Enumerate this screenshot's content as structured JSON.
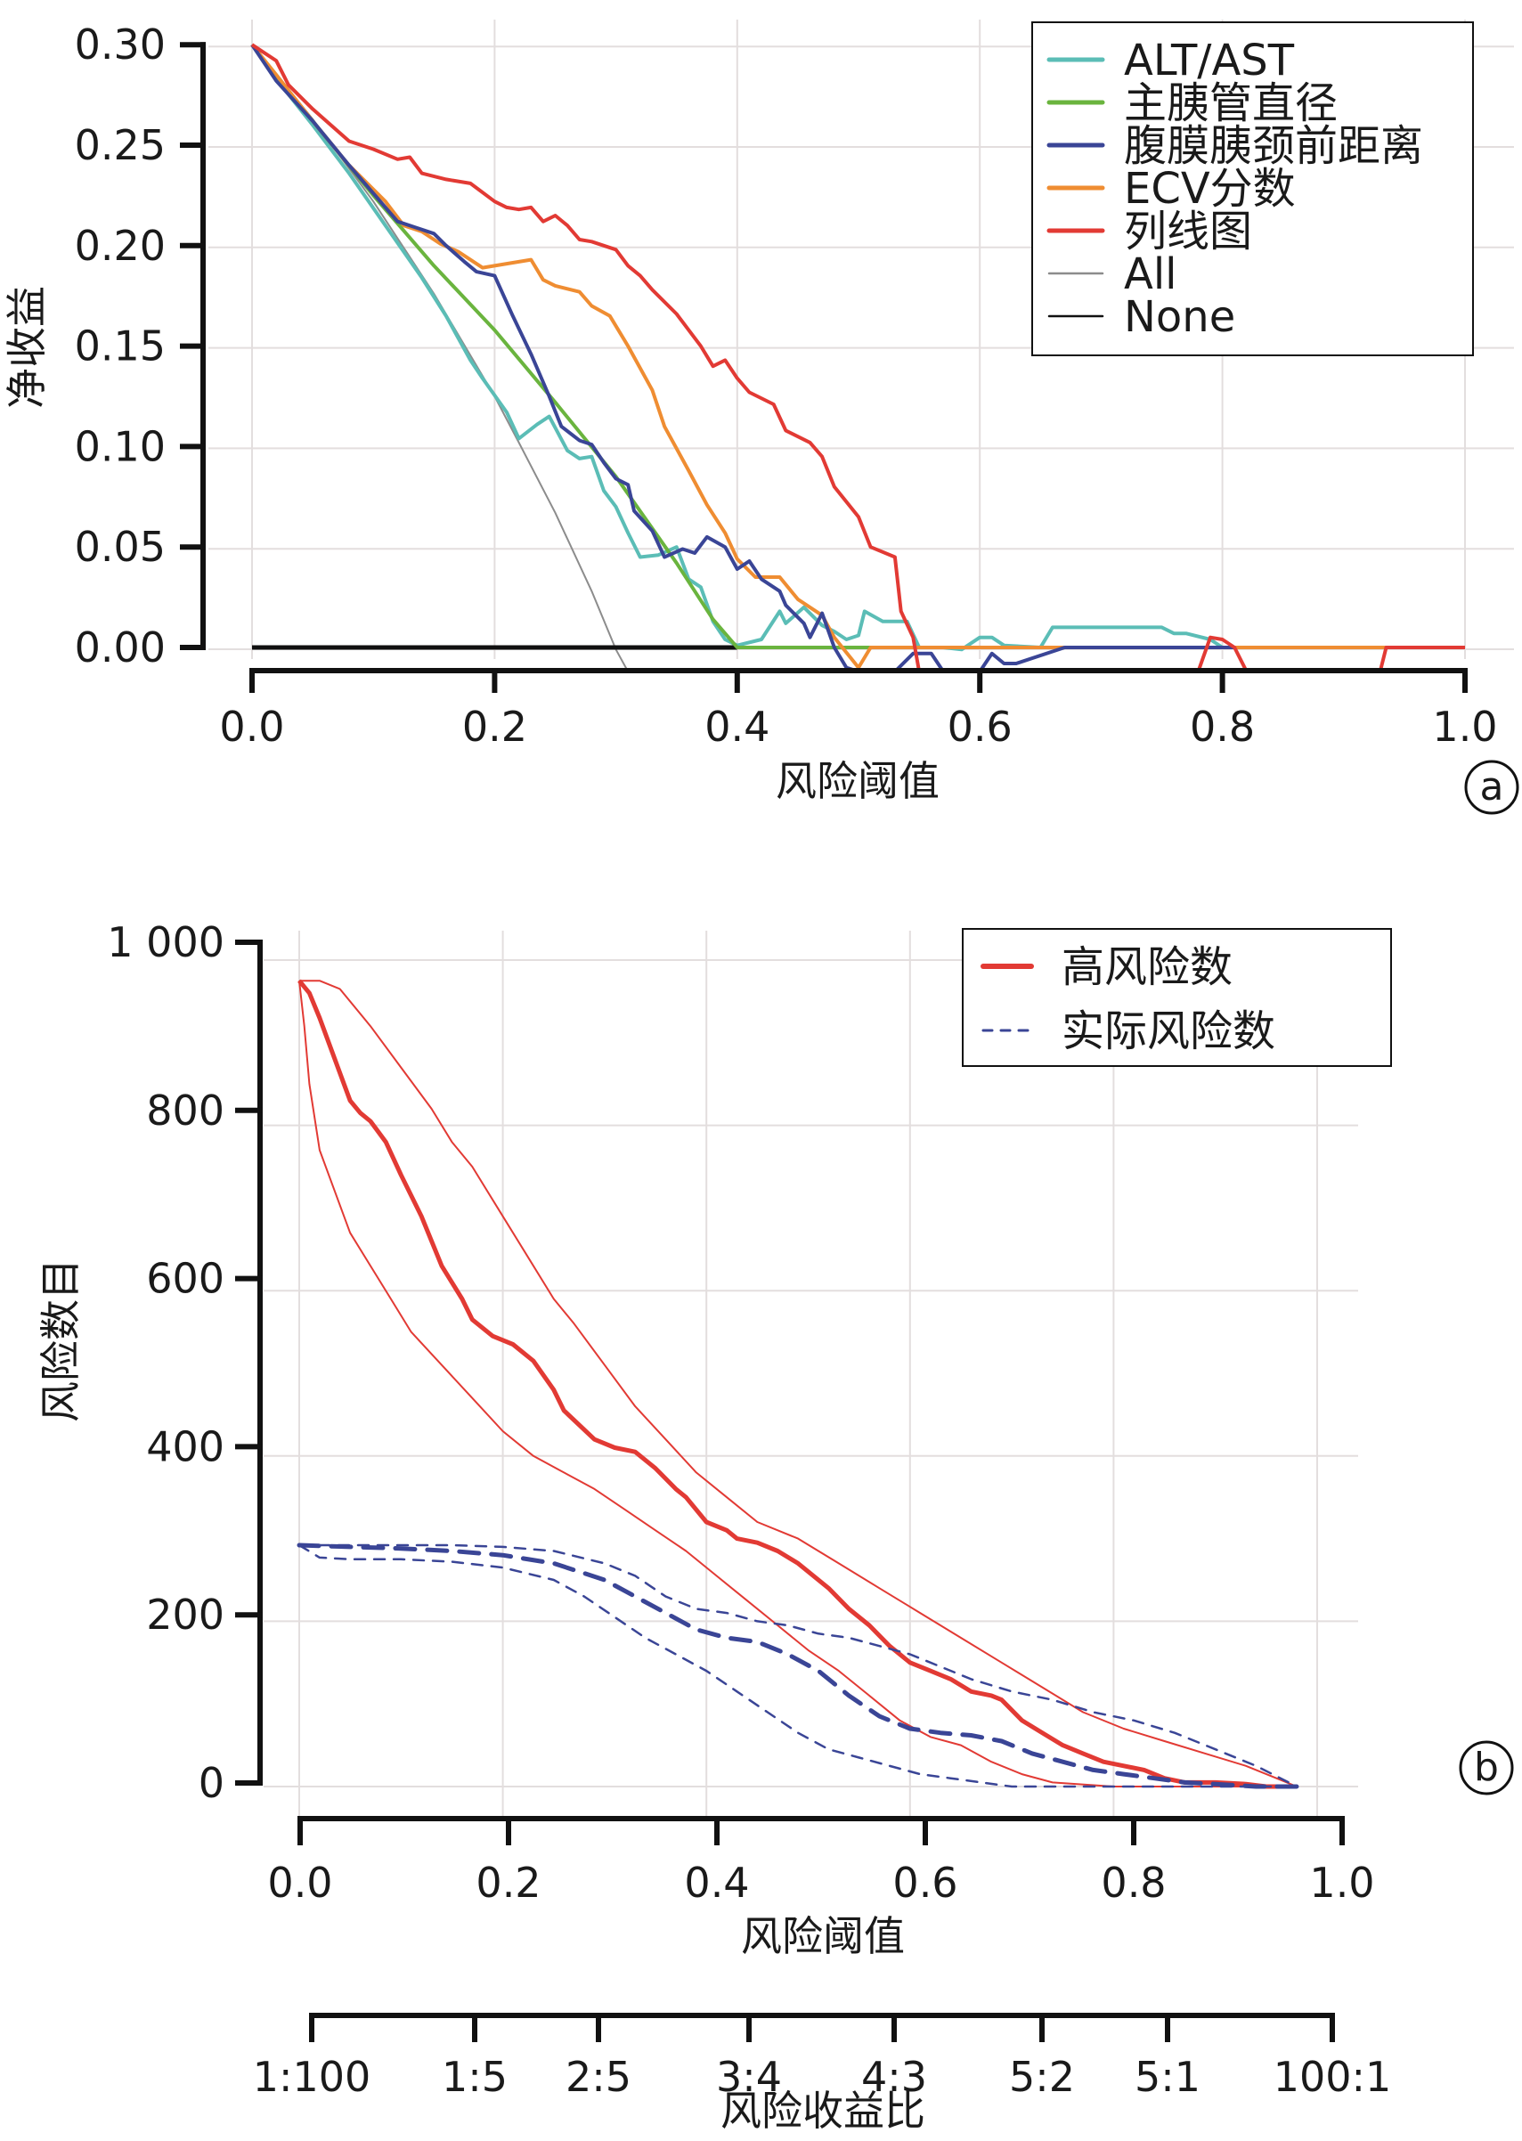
{
  "chart_data": [
    {
      "type": "line",
      "panel_label": "a",
      "title": "",
      "xlabel": "风险阈值",
      "ylabel": "净收益",
      "xlim": [
        0,
        1.0
      ],
      "ylim": [
        -0.012,
        0.3
      ],
      "x_ticks": [
        "0.0",
        "0.2",
        "0.4",
        "0.6",
        "0.8",
        "1.0"
      ],
      "x_tick_values": [
        0,
        0.2,
        0.4,
        0.6,
        0.8,
        1.0
      ],
      "y_ticks": [
        "0.30",
        "0.25",
        "0.20",
        "0.15",
        "0.10",
        "0.05",
        "0.00"
      ],
      "y_tick_values": [
        0.3,
        0.25,
        0.2,
        0.15,
        0.1,
        0.05,
        0.0
      ],
      "grid": true,
      "legend_position": "top-right",
      "series": [
        {
          "name": "ALT/AST",
          "color": "#5bbdb6",
          "width": 4,
          "x": [
            0,
            0.02,
            0.05,
            0.08,
            0.11,
            0.14,
            0.16,
            0.18,
            0.19,
            0.21,
            0.22,
            0.235,
            0.245,
            0.26,
            0.27,
            0.28,
            0.29,
            0.3,
            0.31,
            0.32,
            0.335,
            0.35,
            0.36,
            0.37,
            0.38,
            0.39,
            0.4,
            0.42,
            0.435,
            0.44,
            0.455,
            0.47,
            0.48,
            0.49,
            0.5,
            0.505,
            0.52,
            0.53,
            0.54,
            0.55,
            0.57,
            0.585,
            0.6,
            0.61,
            0.62,
            0.65,
            0.66,
            0.67,
            0.75,
            0.76,
            0.77,
            0.79,
            0.8
          ],
          "y": [
            0.3,
            0.283,
            0.26,
            0.236,
            0.21,
            0.184,
            0.165,
            0.143,
            0.134,
            0.117,
            0.104,
            0.111,
            0.115,
            0.098,
            0.094,
            0.095,
            0.078,
            0.07,
            0.057,
            0.045,
            0.046,
            0.05,
            0.034,
            0.03,
            0.013,
            0.004,
            0.001,
            0.004,
            0.018,
            0.012,
            0.02,
            0.011,
            0.008,
            0.004,
            0.006,
            0.018,
            0.013,
            0.013,
            0.013,
            0.0,
            0.0,
            -0.001,
            0.005,
            0.005,
            0.001,
            0.0,
            0.01,
            0.01,
            0.01,
            0.007,
            0.007,
            0.004,
            0.0
          ]
        },
        {
          "name": "主胰管直径",
          "color": "#6ab43e",
          "width": 4,
          "x": [
            0,
            0.05,
            0.1,
            0.15,
            0.2,
            0.25,
            0.3,
            0.35,
            0.38,
            0.4,
            1.0
          ],
          "y": [
            0.3,
            0.262,
            0.225,
            0.19,
            0.158,
            0.122,
            0.085,
            0.042,
            0.014,
            0.0,
            0.0
          ]
        },
        {
          "name": "腹膜胰颈前距离",
          "color": "#3a4596",
          "width": 4,
          "x": [
            0,
            0.02,
            0.05,
            0.08,
            0.1,
            0.12,
            0.135,
            0.15,
            0.16,
            0.175,
            0.185,
            0.2,
            0.215,
            0.23,
            0.245,
            0.255,
            0.27,
            0.28,
            0.29,
            0.3,
            0.31,
            0.315,
            0.33,
            0.34,
            0.355,
            0.365,
            0.375,
            0.39,
            0.4,
            0.41,
            0.42,
            0.435,
            0.44,
            0.455,
            0.46,
            0.47,
            0.48,
            0.49,
            0.5,
            0.505,
            0.52,
            0.53,
            0.545,
            0.56,
            0.57,
            0.58,
            0.6,
            0.61,
            0.62,
            0.63,
            0.67,
            0.8,
            0.81
          ],
          "y": [
            0.3,
            0.282,
            0.262,
            0.24,
            0.226,
            0.212,
            0.209,
            0.206,
            0.2,
            0.192,
            0.187,
            0.185,
            0.165,
            0.146,
            0.125,
            0.11,
            0.103,
            0.101,
            0.092,
            0.084,
            0.081,
            0.068,
            0.058,
            0.045,
            0.049,
            0.047,
            0.055,
            0.05,
            0.039,
            0.043,
            0.034,
            0.028,
            0.021,
            0.012,
            0.005,
            0.017,
            0.0,
            -0.01,
            -0.012,
            -0.012,
            -0.012,
            -0.012,
            -0.003,
            -0.003,
            -0.012,
            -0.012,
            -0.012,
            -0.003,
            -0.008,
            -0.008,
            0.0,
            0.0,
            0.0
          ]
        },
        {
          "name": "ECV分数",
          "color": "#ef8d32",
          "width": 4,
          "x": [
            0,
            0.02,
            0.05,
            0.08,
            0.11,
            0.125,
            0.14,
            0.155,
            0.17,
            0.19,
            0.21,
            0.23,
            0.24,
            0.25,
            0.27,
            0.28,
            0.295,
            0.31,
            0.33,
            0.34,
            0.36,
            0.375,
            0.39,
            0.4,
            0.415,
            0.435,
            0.45,
            0.47,
            0.48,
            0.5,
            0.51,
            0.82,
            0.935
          ],
          "y": [
            0.3,
            0.285,
            0.262,
            0.24,
            0.222,
            0.21,
            0.207,
            0.201,
            0.197,
            0.189,
            0.191,
            0.193,
            0.183,
            0.18,
            0.177,
            0.17,
            0.165,
            0.15,
            0.128,
            0.11,
            0.088,
            0.071,
            0.057,
            0.044,
            0.035,
            0.035,
            0.024,
            0.016,
            0.005,
            -0.01,
            0.0,
            0.0,
            0.0
          ]
        },
        {
          "name": "列线图",
          "color": "#e23a34",
          "width": 4,
          "x": [
            0,
            0.02,
            0.03,
            0.05,
            0.08,
            0.1,
            0.12,
            0.13,
            0.14,
            0.16,
            0.18,
            0.2,
            0.21,
            0.22,
            0.23,
            0.24,
            0.25,
            0.26,
            0.27,
            0.28,
            0.3,
            0.31,
            0.32,
            0.33,
            0.35,
            0.36,
            0.37,
            0.38,
            0.39,
            0.4,
            0.41,
            0.43,
            0.44,
            0.46,
            0.47,
            0.48,
            0.5,
            0.51,
            0.53,
            0.535,
            0.545,
            0.55,
            0.78,
            0.79,
            0.8,
            0.81,
            0.82,
            0.93,
            0.935,
            1.0
          ],
          "y": [
            0.3,
            0.292,
            0.28,
            0.268,
            0.252,
            0.248,
            0.243,
            0.244,
            0.236,
            0.233,
            0.231,
            0.222,
            0.219,
            0.218,
            0.219,
            0.212,
            0.215,
            0.21,
            0.203,
            0.202,
            0.198,
            0.19,
            0.185,
            0.178,
            0.166,
            0.158,
            0.15,
            0.14,
            0.143,
            0.134,
            0.127,
            0.121,
            0.108,
            0.102,
            0.095,
            0.08,
            0.065,
            0.05,
            0.045,
            0.018,
            0.005,
            -0.012,
            -0.012,
            0.005,
            0.004,
            0.0,
            -0.012,
            -0.012,
            0.0,
            0.0
          ]
        },
        {
          "name": "All",
          "color": "#8c8c8c",
          "width": 2,
          "x": [
            0,
            0.05,
            0.1,
            0.15,
            0.2,
            0.22,
            0.25,
            0.28,
            0.3,
            0.31
          ],
          "y": [
            0.3,
            0.263,
            0.222,
            0.176,
            0.125,
            0.102,
            0.067,
            0.028,
            -0.001,
            -0.012
          ]
        },
        {
          "name": "None",
          "color": "#111111",
          "width": 5,
          "x": [
            0,
            0.4
          ],
          "y": [
            0,
            0
          ]
        }
      ]
    },
    {
      "type": "line",
      "panel_label": "b",
      "title": "",
      "xlabel": "风险阈值",
      "ylabel": "风险数目",
      "secondary_xlabel": "风险收益比",
      "xlim": [
        0,
        1.0
      ],
      "ylim": [
        0,
        1000
      ],
      "x_ticks": [
        "0.0",
        "0.2",
        "0.4",
        "0.6",
        "0.8",
        "1.0"
      ],
      "x_tick_values": [
        0,
        0.2,
        0.4,
        0.6,
        0.8,
        1.0
      ],
      "y_ticks": [
        "1 000",
        "800",
        "600",
        "400",
        "200",
        "0"
      ],
      "y_tick_values": [
        1000,
        800,
        600,
        400,
        200,
        0
      ],
      "secondary_x_ticks": [
        "1:100",
        "1:5",
        "2:5",
        "3:4",
        "4:3",
        "5:2",
        "5:1",
        "100:1"
      ],
      "secondary_x_tick_values": [
        0.01,
        0.167,
        0.286,
        0.429,
        0.571,
        0.714,
        0.833,
        0.99
      ],
      "grid": true,
      "legend_position": "top-right",
      "legend": [
        {
          "name": "高风险数",
          "color": "#e23a34",
          "style": "solid"
        },
        {
          "name": "实际风险数",
          "color": "#3a4596",
          "style": "dashed"
        }
      ],
      "series": [
        {
          "name": "高风险数",
          "color": "#e23a34",
          "style": "solid",
          "width": 5,
          "x": [
            0,
            0.01,
            0.02,
            0.035,
            0.05,
            0.06,
            0.07,
            0.085,
            0.1,
            0.12,
            0.14,
            0.16,
            0.17,
            0.19,
            0.21,
            0.23,
            0.25,
            0.26,
            0.29,
            0.31,
            0.33,
            0.35,
            0.37,
            0.38,
            0.4,
            0.42,
            0.43,
            0.45,
            0.47,
            0.49,
            0.5,
            0.52,
            0.54,
            0.56,
            0.58,
            0.6,
            0.62,
            0.64,
            0.66,
            0.68,
            0.69,
            0.71,
            0.73,
            0.75,
            0.77,
            0.79,
            0.81,
            0.83,
            0.85,
            0.87,
            0.9,
            0.93,
            0.95,
            0.98
          ],
          "y": [
            975,
            960,
            930,
            880,
            830,
            815,
            805,
            780,
            740,
            690,
            630,
            590,
            565,
            545,
            535,
            515,
            480,
            455,
            420,
            410,
            405,
            385,
            360,
            350,
            320,
            310,
            300,
            295,
            285,
            270,
            260,
            240,
            215,
            195,
            170,
            150,
            140,
            130,
            115,
            110,
            105,
            80,
            65,
            50,
            40,
            30,
            25,
            20,
            10,
            5,
            5,
            3,
            0,
            0
          ]
        },
        {
          "name": "高风险数 上限",
          "color": "#e23a34",
          "style": "solid",
          "width": 2,
          "x": [
            0,
            0.02,
            0.04,
            0.07,
            0.1,
            0.13,
            0.15,
            0.17,
            0.2,
            0.22,
            0.25,
            0.27,
            0.3,
            0.33,
            0.36,
            0.39,
            0.42,
            0.45,
            0.49,
            0.53,
            0.57,
            0.61,
            0.65,
            0.69,
            0.73,
            0.77,
            0.81,
            0.85,
            0.89,
            0.93,
            0.96,
            0.98
          ],
          "y": [
            975,
            975,
            965,
            920,
            870,
            820,
            780,
            750,
            690,
            650,
            590,
            560,
            510,
            460,
            420,
            380,
            350,
            320,
            300,
            270,
            240,
            210,
            180,
            150,
            120,
            90,
            70,
            55,
            40,
            25,
            10,
            0
          ]
        },
        {
          "name": "高风险数 下限",
          "color": "#e23a34",
          "style": "solid",
          "width": 2,
          "x": [
            0,
            0.005,
            0.01,
            0.02,
            0.035,
            0.05,
            0.07,
            0.09,
            0.11,
            0.14,
            0.17,
            0.2,
            0.23,
            0.26,
            0.29,
            0.32,
            0.35,
            0.38,
            0.41,
            0.44,
            0.47,
            0.5,
            0.53,
            0.56,
            0.59,
            0.62,
            0.65,
            0.68,
            0.71,
            0.74,
            0.8,
            0.9,
            0.98
          ],
          "y": [
            975,
            920,
            850,
            770,
            720,
            670,
            630,
            590,
            550,
            510,
            470,
            430,
            400,
            380,
            360,
            335,
            310,
            285,
            255,
            225,
            195,
            165,
            140,
            110,
            80,
            60,
            50,
            30,
            15,
            5,
            0,
            0,
            0
          ]
        },
        {
          "name": "实际风险数",
          "color": "#3a4596",
          "style": "dashed",
          "width": 5,
          "x": [
            0,
            0.05,
            0.1,
            0.15,
            0.2,
            0.25,
            0.3,
            0.33,
            0.36,
            0.39,
            0.42,
            0.45,
            0.48,
            0.51,
            0.54,
            0.57,
            0.6,
            0.63,
            0.66,
            0.69,
            0.72,
            0.75,
            0.78,
            0.81,
            0.84,
            0.87,
            0.9,
            0.94,
            0.98
          ],
          "y": [
            292,
            290,
            288,
            285,
            280,
            270,
            250,
            230,
            210,
            190,
            180,
            175,
            160,
            140,
            110,
            85,
            70,
            65,
            62,
            55,
            40,
            30,
            20,
            15,
            10,
            5,
            3,
            0,
            0
          ]
        },
        {
          "name": "实际风险数 上限",
          "color": "#3a4596",
          "style": "dashed",
          "width": 2.5,
          "x": [
            0,
            0.05,
            0.1,
            0.15,
            0.2,
            0.25,
            0.3,
            0.33,
            0.36,
            0.39,
            0.42,
            0.45,
            0.48,
            0.51,
            0.54,
            0.57,
            0.6,
            0.63,
            0.66,
            0.7,
            0.74,
            0.78,
            0.82,
            0.86,
            0.9,
            0.94,
            0.98
          ],
          "y": [
            292,
            292,
            292,
            292,
            290,
            285,
            270,
            255,
            230,
            215,
            210,
            200,
            195,
            185,
            180,
            170,
            160,
            145,
            130,
            115,
            105,
            90,
            80,
            65,
            45,
            25,
            0
          ]
        },
        {
          "name": "实际风险数 下限",
          "color": "#3a4596",
          "style": "dashed",
          "width": 2.5,
          "x": [
            0,
            0.02,
            0.05,
            0.1,
            0.15,
            0.2,
            0.25,
            0.28,
            0.31,
            0.34,
            0.37,
            0.4,
            0.43,
            0.46,
            0.49,
            0.52,
            0.55,
            0.58,
            0.61,
            0.64,
            0.67,
            0.7,
            0.74,
            0.78,
            0.84,
            0.9,
            0.98
          ],
          "y": [
            292,
            277,
            275,
            275,
            272,
            265,
            250,
            230,
            205,
            180,
            160,
            140,
            115,
            90,
            65,
            45,
            35,
            25,
            15,
            10,
            5,
            0,
            0,
            0,
            0,
            0,
            0
          ]
        }
      ]
    }
  ]
}
